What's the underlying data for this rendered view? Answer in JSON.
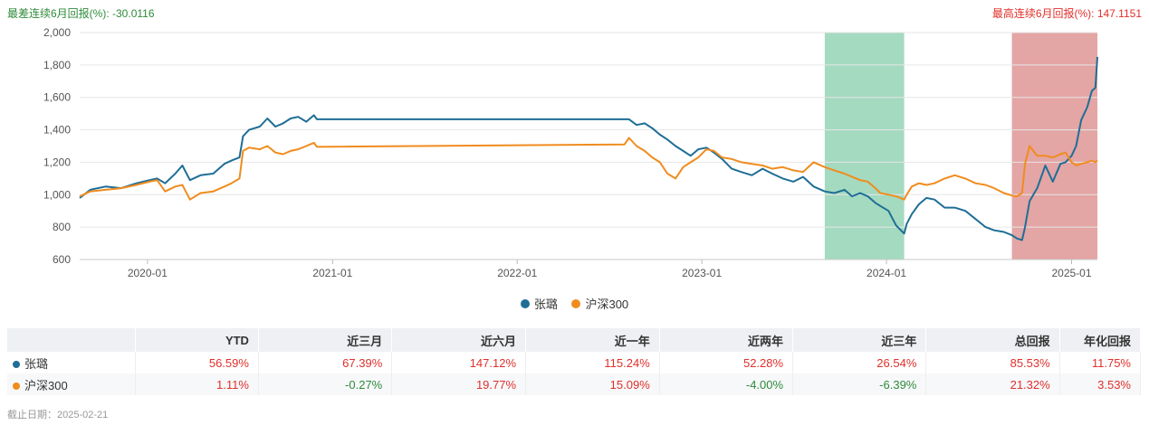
{
  "header": {
    "worst6m_label": "最差连续6月回报(%):",
    "worst6m_value": "-30.0116",
    "best6m_label": "最高连续6月回报(%):",
    "best6m_value": "147.1151"
  },
  "colors": {
    "fund": "#1f6e96",
    "index": "#f08c1e",
    "positive": "#e0302b",
    "negative": "#2e8b3a",
    "worst_band": "#9fd8bd",
    "best_band": "#e3a0a0"
  },
  "chart_data": {
    "type": "line",
    "ylim": [
      600,
      2000
    ],
    "yticks": [
      600,
      800,
      1000,
      1200,
      1400,
      1600,
      1800,
      2000
    ],
    "xlim": [
      "2019-08-20",
      "2025-02-21"
    ],
    "xticks": [
      {
        "date": "2020-01-01",
        "label": "2020-01"
      },
      {
        "date": "2021-01-01",
        "label": "2021-01"
      },
      {
        "date": "2022-01-01",
        "label": "2022-01"
      },
      {
        "date": "2023-01-01",
        "label": "2023-01"
      },
      {
        "date": "2024-01-01",
        "label": "2024-01"
      },
      {
        "date": "2025-01-01",
        "label": "2025-01"
      }
    ],
    "grid": true,
    "legend_position": "bottom",
    "bands": [
      {
        "name": "worst6m",
        "start": "2023-09-01",
        "end": "2024-02-05",
        "color": "#9fd8bd"
      },
      {
        "name": "best6m",
        "start": "2024-09-05",
        "end": "2025-02-21",
        "color": "#e3a0a0"
      }
    ],
    "series": [
      {
        "name": "张璐",
        "color": "#1f6e96",
        "points": [
          [
            "2019-08-20",
            980
          ],
          [
            "2019-09-10",
            1030
          ],
          [
            "2019-10-10",
            1050
          ],
          [
            "2019-11-10",
            1040
          ],
          [
            "2019-12-10",
            1070
          ],
          [
            "2020-01-05",
            1090
          ],
          [
            "2020-01-20",
            1100
          ],
          [
            "2020-02-05",
            1070
          ],
          [
            "2020-02-25",
            1130
          ],
          [
            "2020-03-10",
            1180
          ],
          [
            "2020-03-25",
            1090
          ],
          [
            "2020-04-15",
            1120
          ],
          [
            "2020-05-10",
            1130
          ],
          [
            "2020-06-01",
            1190
          ],
          [
            "2020-06-15",
            1210
          ],
          [
            "2020-07-01",
            1230
          ],
          [
            "2020-07-08",
            1360
          ],
          [
            "2020-07-20",
            1400
          ],
          [
            "2020-08-10",
            1420
          ],
          [
            "2020-08-25",
            1470
          ],
          [
            "2020-09-10",
            1420
          ],
          [
            "2020-09-25",
            1440
          ],
          [
            "2020-10-10",
            1470
          ],
          [
            "2020-10-25",
            1480
          ],
          [
            "2020-11-10",
            1450
          ],
          [
            "2020-11-25",
            1490
          ],
          [
            "2020-12-01",
            1465
          ],
          [
            "2022-08-10",
            1465
          ],
          [
            "2022-08-25",
            1430
          ],
          [
            "2022-09-10",
            1440
          ],
          [
            "2022-09-25",
            1410
          ],
          [
            "2022-10-10",
            1370
          ],
          [
            "2022-10-25",
            1340
          ],
          [
            "2022-11-10",
            1300
          ],
          [
            "2022-11-25",
            1270
          ],
          [
            "2022-12-10",
            1240
          ],
          [
            "2022-12-25",
            1280
          ],
          [
            "2023-01-10",
            1290
          ],
          [
            "2023-01-25",
            1260
          ],
          [
            "2023-02-10",
            1220
          ],
          [
            "2023-03-01",
            1160
          ],
          [
            "2023-03-20",
            1140
          ],
          [
            "2023-04-10",
            1120
          ],
          [
            "2023-05-01",
            1160
          ],
          [
            "2023-05-20",
            1130
          ],
          [
            "2023-06-10",
            1100
          ],
          [
            "2023-07-01",
            1080
          ],
          [
            "2023-07-20",
            1110
          ],
          [
            "2023-08-10",
            1050
          ],
          [
            "2023-09-01",
            1020
          ],
          [
            "2023-09-20",
            1010
          ],
          [
            "2023-10-10",
            1030
          ],
          [
            "2023-10-25",
            990
          ],
          [
            "2023-11-10",
            1010
          ],
          [
            "2023-11-25",
            990
          ],
          [
            "2023-12-10",
            950
          ],
          [
            "2023-12-20",
            930
          ],
          [
            "2024-01-05",
            900
          ],
          [
            "2024-01-20",
            810
          ],
          [
            "2024-02-05",
            760
          ],
          [
            "2024-02-10",
            820
          ],
          [
            "2024-02-20",
            880
          ],
          [
            "2024-03-05",
            940
          ],
          [
            "2024-03-20",
            980
          ],
          [
            "2024-04-05",
            970
          ],
          [
            "2024-04-25",
            920
          ],
          [
            "2024-05-15",
            920
          ],
          [
            "2024-06-05",
            900
          ],
          [
            "2024-06-25",
            850
          ],
          [
            "2024-07-15",
            800
          ],
          [
            "2024-08-01",
            780
          ],
          [
            "2024-08-20",
            770
          ],
          [
            "2024-09-05",
            750
          ],
          [
            "2024-09-15",
            730
          ],
          [
            "2024-09-25",
            720
          ],
          [
            "2024-10-01",
            800
          ],
          [
            "2024-10-10",
            960
          ],
          [
            "2024-10-25",
            1040
          ],
          [
            "2024-11-10",
            1180
          ],
          [
            "2024-11-25",
            1080
          ],
          [
            "2024-12-10",
            1190
          ],
          [
            "2024-12-20",
            1200
          ],
          [
            "2025-01-01",
            1240
          ],
          [
            "2025-01-10",
            1300
          ],
          [
            "2025-01-20",
            1460
          ],
          [
            "2025-02-01",
            1540
          ],
          [
            "2025-02-10",
            1640
          ],
          [
            "2025-02-17",
            1660
          ],
          [
            "2025-02-21",
            1850
          ]
        ]
      },
      {
        "name": "沪深300",
        "color": "#f08c1e",
        "points": [
          [
            "2019-08-20",
            990
          ],
          [
            "2019-09-10",
            1020
          ],
          [
            "2019-10-10",
            1030
          ],
          [
            "2019-11-10",
            1040
          ],
          [
            "2019-12-10",
            1060
          ],
          [
            "2020-01-05",
            1080
          ],
          [
            "2020-01-20",
            1090
          ],
          [
            "2020-02-05",
            1020
          ],
          [
            "2020-02-25",
            1050
          ],
          [
            "2020-03-10",
            1060
          ],
          [
            "2020-03-25",
            970
          ],
          [
            "2020-04-15",
            1010
          ],
          [
            "2020-05-10",
            1020
          ],
          [
            "2020-06-01",
            1050
          ],
          [
            "2020-06-15",
            1070
          ],
          [
            "2020-07-01",
            1100
          ],
          [
            "2020-07-08",
            1270
          ],
          [
            "2020-07-20",
            1290
          ],
          [
            "2020-08-10",
            1280
          ],
          [
            "2020-08-25",
            1300
          ],
          [
            "2020-09-10",
            1260
          ],
          [
            "2020-09-25",
            1250
          ],
          [
            "2020-10-10",
            1270
          ],
          [
            "2020-10-25",
            1280
          ],
          [
            "2020-11-10",
            1300
          ],
          [
            "2020-11-25",
            1320
          ],
          [
            "2020-12-01",
            1295
          ],
          [
            "2022-08-01",
            1310
          ],
          [
            "2022-08-10",
            1350
          ],
          [
            "2022-08-25",
            1300
          ],
          [
            "2022-09-10",
            1270
          ],
          [
            "2022-09-25",
            1230
          ],
          [
            "2022-10-10",
            1200
          ],
          [
            "2022-10-25",
            1130
          ],
          [
            "2022-11-10",
            1100
          ],
          [
            "2022-11-25",
            1170
          ],
          [
            "2022-12-10",
            1200
          ],
          [
            "2022-12-25",
            1230
          ],
          [
            "2023-01-10",
            1280
          ],
          [
            "2023-01-25",
            1270
          ],
          [
            "2023-02-10",
            1230
          ],
          [
            "2023-03-01",
            1220
          ],
          [
            "2023-03-20",
            1200
          ],
          [
            "2023-04-10",
            1190
          ],
          [
            "2023-05-01",
            1180
          ],
          [
            "2023-05-20",
            1160
          ],
          [
            "2023-06-10",
            1170
          ],
          [
            "2023-07-01",
            1150
          ],
          [
            "2023-07-20",
            1140
          ],
          [
            "2023-08-10",
            1200
          ],
          [
            "2023-09-01",
            1170
          ],
          [
            "2023-09-20",
            1150
          ],
          [
            "2023-10-10",
            1130
          ],
          [
            "2023-10-25",
            1110
          ],
          [
            "2023-11-10",
            1090
          ],
          [
            "2023-11-25",
            1080
          ],
          [
            "2023-12-10",
            1040
          ],
          [
            "2023-12-20",
            1010
          ],
          [
            "2024-01-05",
            1000
          ],
          [
            "2024-01-20",
            990
          ],
          [
            "2024-02-05",
            970
          ],
          [
            "2024-02-10",
            1000
          ],
          [
            "2024-02-20",
            1050
          ],
          [
            "2024-03-05",
            1070
          ],
          [
            "2024-03-20",
            1060
          ],
          [
            "2024-04-05",
            1070
          ],
          [
            "2024-04-25",
            1100
          ],
          [
            "2024-05-15",
            1120
          ],
          [
            "2024-06-05",
            1100
          ],
          [
            "2024-06-25",
            1070
          ],
          [
            "2024-07-15",
            1060
          ],
          [
            "2024-08-01",
            1040
          ],
          [
            "2024-08-20",
            1010
          ],
          [
            "2024-09-05",
            995
          ],
          [
            "2024-09-15",
            990
          ],
          [
            "2024-09-25",
            1010
          ],
          [
            "2024-10-01",
            1190
          ],
          [
            "2024-10-10",
            1300
          ],
          [
            "2024-10-25",
            1240
          ],
          [
            "2024-11-10",
            1240
          ],
          [
            "2024-11-25",
            1230
          ],
          [
            "2024-12-10",
            1250
          ],
          [
            "2024-12-20",
            1260
          ],
          [
            "2025-01-01",
            1200
          ],
          [
            "2025-01-10",
            1180
          ],
          [
            "2025-01-20",
            1190
          ],
          [
            "2025-02-01",
            1200
          ],
          [
            "2025-02-10",
            1210
          ],
          [
            "2025-02-17",
            1200
          ],
          [
            "2025-02-21",
            1211
          ]
        ]
      }
    ]
  },
  "legend": {
    "items": [
      {
        "label": "张璐"
      },
      {
        "label": "沪深300"
      }
    ]
  },
  "table": {
    "headers": [
      "",
      "YTD",
      "近三月",
      "近六月",
      "近一年",
      "近两年",
      "近三年",
      "总回报",
      "年化回报"
    ],
    "rows": [
      {
        "name": "张璐",
        "values": [
          "56.59%",
          "67.39%",
          "147.12%",
          "115.24%",
          "52.28%",
          "26.54%",
          "85.53%",
          "11.75%"
        ],
        "signs": [
          "pos",
          "pos",
          "pos",
          "pos",
          "pos",
          "pos",
          "pos",
          "pos"
        ]
      },
      {
        "name": "沪深300",
        "values": [
          "1.11%",
          "-0.27%",
          "19.77%",
          "15.09%",
          "-4.00%",
          "-6.39%",
          "21.32%",
          "3.53%"
        ],
        "signs": [
          "pos",
          "neg",
          "pos",
          "pos",
          "neg",
          "neg",
          "pos",
          "pos"
        ]
      }
    ]
  },
  "footer": {
    "as_of": "截止日期：2025-02-21"
  }
}
